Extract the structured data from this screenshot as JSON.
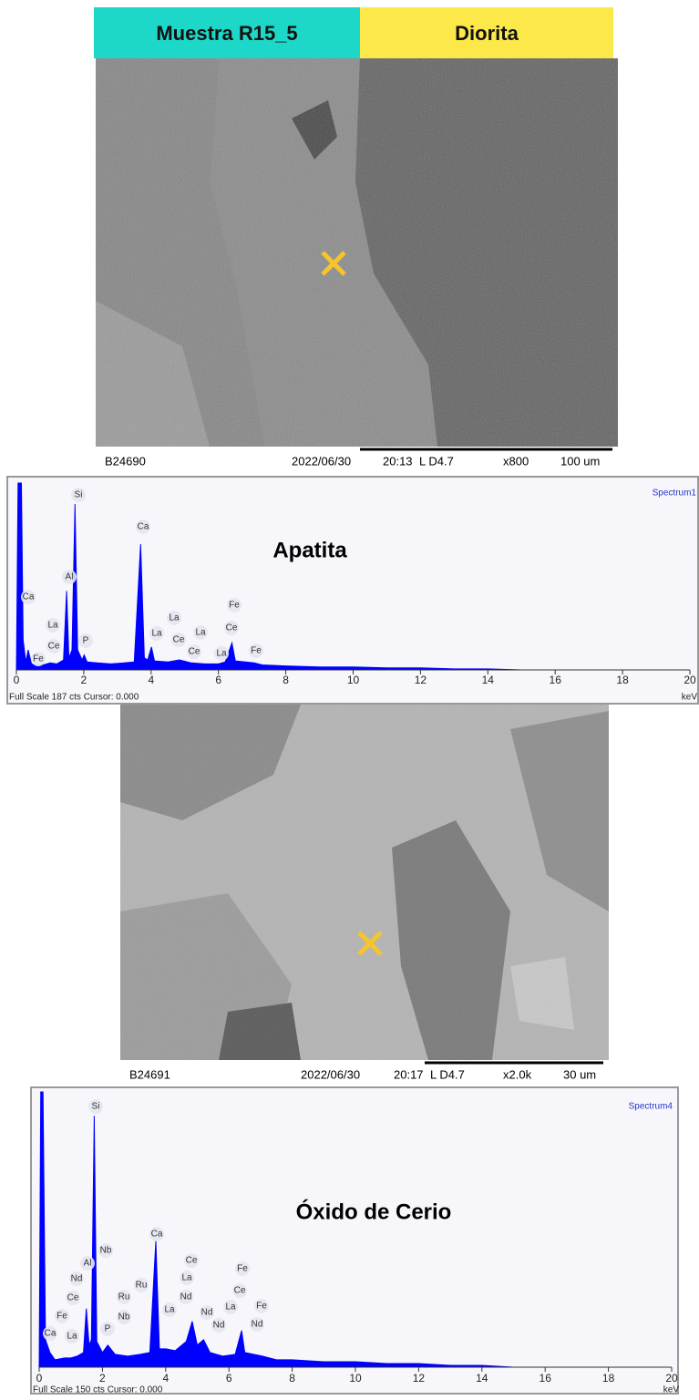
{
  "header": {
    "sample": "Muestra R15_5",
    "rock": "Diorita"
  },
  "sem_images": [
    {
      "id": "B24690",
      "date": "2022/06/30",
      "time": "20:13",
      "mode": "L  D4.7",
      "magnification": "x800",
      "scale": "100 um"
    },
    {
      "id": "B24691",
      "date": "2022/06/30",
      "time": "20:17",
      "mode": "L  D4.7",
      "magnification": "x2.0k",
      "scale": "30 um"
    }
  ],
  "chart_data": [
    {
      "type": "area",
      "title": "Apatita",
      "spectrum_label": "Spectrum1",
      "footer": "Full Scale 187 cts Cursor: 0.000",
      "x_unit": "keV",
      "color": "#0000ff",
      "x": [
        0,
        0.05,
        0.15,
        0.2,
        0.28,
        0.35,
        0.45,
        0.6,
        0.8,
        1.0,
        1.2,
        1.4,
        1.49,
        1.56,
        1.65,
        1.74,
        1.82,
        1.95,
        2.01,
        2.1,
        2.4,
        2.8,
        3.2,
        3.5,
        3.69,
        3.8,
        3.9,
        4.01,
        4.1,
        4.5,
        4.84,
        5.2,
        5.6,
        6.0,
        6.2,
        6.4,
        6.5,
        7.06,
        7.3,
        8,
        9,
        10,
        11,
        12,
        13,
        14,
        15,
        20
      ],
      "values": [
        0,
        187,
        187,
        30,
        8,
        20,
        6,
        4,
        5,
        7,
        6,
        10,
        79,
        12,
        20,
        166,
        20,
        10,
        15,
        8,
        7,
        6,
        7,
        8,
        126,
        12,
        10,
        23,
        9,
        8,
        10,
        7,
        6,
        6,
        8,
        27,
        9,
        7,
        5,
        4,
        3,
        3,
        2,
        2,
        1,
        1,
        0,
        0
      ],
      "xlim": [
        0,
        20
      ],
      "ylim": [
        0,
        187
      ],
      "xticks": [
        0,
        2,
        4,
        6,
        8,
        10,
        12,
        14,
        16,
        18,
        20
      ],
      "annotations": [
        "Si",
        "Ca",
        "Al",
        "Ca",
        "La",
        "Ce",
        "Fe",
        "P",
        "La",
        "La",
        "Ce",
        "La",
        "Ce",
        "La",
        "Fe",
        "Ce",
        "Fe"
      ]
    },
    {
      "type": "area",
      "title": "Óxido de Cerio",
      "spectrum_label": "Spectrum4",
      "footer": "Full Scale 150 cts Cursor: 0.000",
      "x_unit": "keV",
      "color": "#0000ff",
      "x": [
        0,
        0.05,
        0.12,
        0.2,
        0.34,
        0.5,
        0.8,
        1.0,
        1.2,
        1.4,
        1.49,
        1.58,
        1.65,
        1.74,
        1.82,
        2.0,
        2.17,
        2.4,
        2.8,
        3.2,
        3.5,
        3.69,
        3.8,
        4.01,
        4.3,
        4.65,
        4.84,
        5.0,
        5.2,
        5.4,
        5.8,
        6.2,
        6.4,
        6.5,
        7.06,
        7.5,
        8,
        9,
        10,
        11,
        12,
        13,
        14,
        15,
        20
      ],
      "values": [
        0,
        150,
        150,
        15,
        8,
        4,
        5,
        5,
        6,
        8,
        32,
        12,
        15,
        137,
        14,
        8,
        12,
        7,
        6,
        7,
        8,
        69,
        10,
        10,
        9,
        14,
        25,
        12,
        15,
        8,
        6,
        7,
        20,
        8,
        6,
        4,
        4,
        3,
        3,
        2,
        2,
        1,
        1,
        0,
        0
      ],
      "xlim": [
        0,
        20
      ],
      "ylim": [
        0,
        150
      ],
      "xticks": [
        0,
        2,
        4,
        6,
        8,
        10,
        12,
        14,
        16,
        18,
        20
      ],
      "annotations": [
        "Si",
        "Nb",
        "Al",
        "Nd",
        "Ce",
        "Fe",
        "Ca",
        "La",
        "P",
        "Ru",
        "Ru",
        "Nb",
        "Ca",
        "Ce",
        "La",
        "Nd",
        "La",
        "Nd",
        "La",
        "Fe",
        "Ce",
        "Fe",
        "Nd",
        "Nd"
      ]
    }
  ]
}
